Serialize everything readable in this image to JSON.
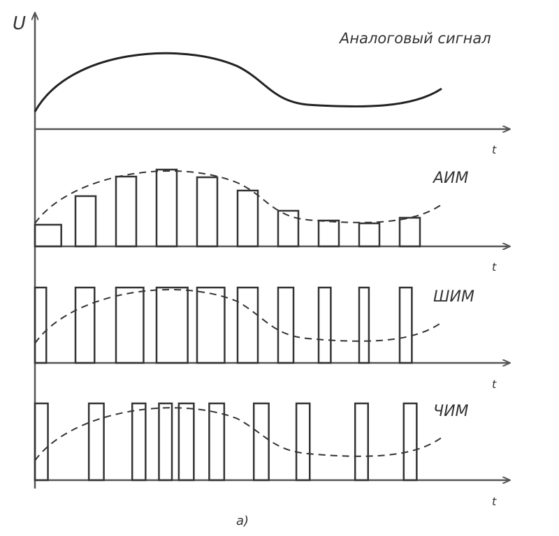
{
  "axis": {
    "y_label": "U",
    "x_label": "t"
  },
  "panels": [
    {
      "id": "analog",
      "label": "Аналоговый сигнал",
      "type": "continuous"
    },
    {
      "id": "aim",
      "label": "АИМ",
      "type": "amplitude",
      "pulses": [
        {
          "t": 0.0,
          "w": 0.65,
          "h": 0.31
        },
        {
          "t": 1.0,
          "w": 0.5,
          "h": 0.72
        },
        {
          "t": 2.0,
          "w": 0.5,
          "h": 1.0
        },
        {
          "t": 3.0,
          "w": 0.5,
          "h": 1.1
        },
        {
          "t": 4.0,
          "w": 0.5,
          "h": 0.99
        },
        {
          "t": 5.0,
          "w": 0.5,
          "h": 0.8
        },
        {
          "t": 6.0,
          "w": 0.5,
          "h": 0.51
        },
        {
          "t": 7.0,
          "w": 0.5,
          "h": 0.37
        },
        {
          "t": 8.0,
          "w": 0.5,
          "h": 0.33
        },
        {
          "t": 9.0,
          "w": 0.5,
          "h": 0.41
        }
      ]
    },
    {
      "id": "shim",
      "label": "ШИМ",
      "type": "width",
      "pulses": [
        {
          "t": 0.0,
          "w": 0.28
        },
        {
          "t": 1.0,
          "w": 0.47
        },
        {
          "t": 2.0,
          "w": 0.68
        },
        {
          "t": 3.0,
          "w": 0.77
        },
        {
          "t": 4.0,
          "w": 0.68
        },
        {
          "t": 5.0,
          "w": 0.5
        },
        {
          "t": 6.0,
          "w": 0.38
        },
        {
          "t": 7.0,
          "w": 0.3
        },
        {
          "t": 8.0,
          "w": 0.24
        },
        {
          "t": 9.0,
          "w": 0.3
        }
      ]
    },
    {
      "id": "chim",
      "label": "ЧИМ",
      "type": "frequency",
      "pulses": [
        {
          "t": 0.0,
          "w": 0.32
        },
        {
          "t": 1.33,
          "w": 0.37
        },
        {
          "t": 2.4,
          "w": 0.33
        },
        {
          "t": 3.06,
          "w": 0.32
        },
        {
          "t": 3.55,
          "w": 0.37
        },
        {
          "t": 4.3,
          "w": 0.37
        },
        {
          "t": 5.4,
          "w": 0.37
        },
        {
          "t": 6.45,
          "w": 0.33
        },
        {
          "t": 7.9,
          "w": 0.32
        },
        {
          "t": 9.1,
          "w": 0.32
        }
      ]
    }
  ],
  "caption": "а)"
}
